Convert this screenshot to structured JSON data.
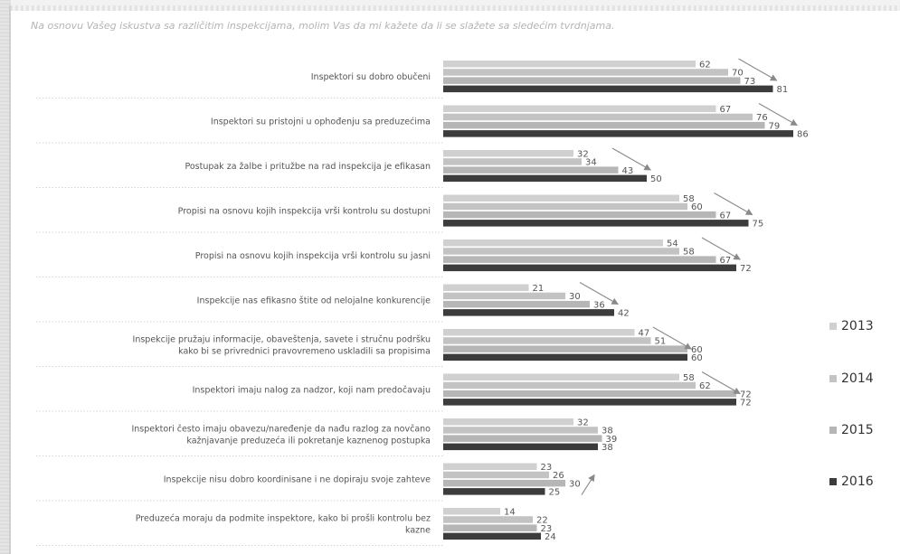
{
  "subtitle": "Na osnovu Vašeg iskustva sa različitim inspekcijama, molim Vas da mi kažete da li se slažete sa sledećim tvrdnjama.",
  "chart_data": {
    "type": "bar",
    "orientation": "horizontal",
    "categories": [
      [
        "Inspektori su dobro obučeni"
      ],
      [
        "Inspektori su pristojni u ophođenju sa preduzećima"
      ],
      [
        "Postupak za žalbe i pritužbe na rad inspekcija je efikasan"
      ],
      [
        "Propisi na osnovu kojih inspekcija vrši kontrolu su dostupni"
      ],
      [
        "Propisi na osnovu kojih inspekcija vrši kontrolu su jasni"
      ],
      [
        "Inspekcije nas efikasno štite od nelojalne konkurencije"
      ],
      [
        "Inspekcije pružaju informacije, obaveštenja, savete i stručnu podršku",
        "kako bi se privrednici pravovremeno uskladili sa propisima"
      ],
      [
        "Inspektori imaju nalog za nadzor, koji nam predočavaju"
      ],
      [
        "Inspektori često imaju obavezu/naređenje da nađu razlog za novčano",
        "kažnjavanje preduzeća ili pokretanje kaznenog postupka"
      ],
      [
        "Inspekcije nisu dobro koordinisane i ne dopiraju svoje zahteve"
      ],
      [
        "Preduzeća moraju da podmite inspektore, kako bi prošli kontrolu bez",
        "kazne"
      ]
    ],
    "series": [
      {
        "name": "2013",
        "color": "#d0d0d0",
        "values": [
          62,
          67,
          32,
          58,
          54,
          21,
          47,
          58,
          32,
          23,
          14
        ]
      },
      {
        "name": "2014",
        "color": "#c3c3c3",
        "values": [
          70,
          76,
          34,
          60,
          58,
          30,
          51,
          62,
          38,
          26,
          22
        ]
      },
      {
        "name": "2015",
        "color": "#b6b6b6",
        "values": [
          73,
          79,
          43,
          67,
          67,
          36,
          60,
          72,
          39,
          30,
          23
        ]
      },
      {
        "name": "2016",
        "color": "#3c3c3c",
        "values": [
          81,
          86,
          50,
          75,
          72,
          42,
          60,
          72,
          38,
          25,
          24
        ]
      }
    ],
    "trend_arrows": [
      "down",
      "down",
      "down",
      "down",
      "down",
      "down",
      "down",
      "down",
      "none",
      "up",
      "none"
    ],
    "legend_position": "right",
    "grid": false
  }
}
